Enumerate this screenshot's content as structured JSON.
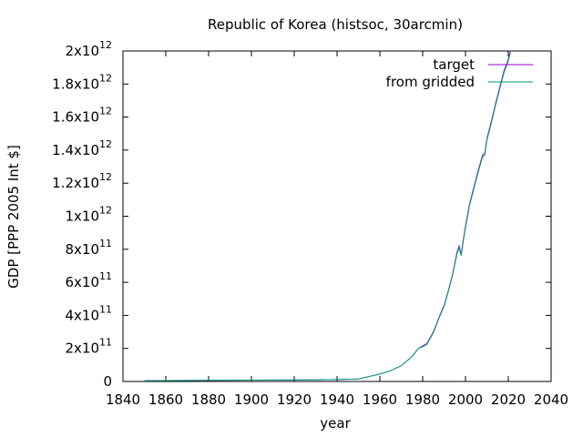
{
  "chart_data": {
    "type": "line",
    "title": "Republic of Korea (histsoc, 30arcmin)",
    "xlabel": "year",
    "ylabel": "GDP [PPP 2005 Int $]",
    "xlim": [
      1840,
      2040
    ],
    "ylim": [
      0,
      2000000000000
    ],
    "grid": false,
    "legend_position": "top-right",
    "x_ticks": [
      1840,
      1860,
      1880,
      1900,
      1920,
      1940,
      1960,
      1980,
      2000,
      2020,
      2040
    ],
    "x_tick_labels": [
      "1840",
      "1860",
      "1880",
      "1900",
      "1920",
      "1940",
      "1960",
      "1980",
      "2000",
      "2020",
      "2040"
    ],
    "y_ticks": [
      {
        "value": 0,
        "mant": "0",
        "exp": ""
      },
      {
        "value": 200000000000,
        "mant": "2x10",
        "exp": "11"
      },
      {
        "value": 400000000000,
        "mant": "4x10",
        "exp": "11"
      },
      {
        "value": 600000000000,
        "mant": "6x10",
        "exp": "11"
      },
      {
        "value": 800000000000,
        "mant": "8x10",
        "exp": "11"
      },
      {
        "value": 1000000000000,
        "mant": "1x10",
        "exp": "12"
      },
      {
        "value": 1200000000000,
        "mant": "1.2x10",
        "exp": "12"
      },
      {
        "value": 1400000000000,
        "mant": "1.4x10",
        "exp": "12"
      },
      {
        "value": 1600000000000,
        "mant": "1.6x10",
        "exp": "12"
      },
      {
        "value": 1800000000000,
        "mant": "1.8x10",
        "exp": "12"
      },
      {
        "value": 2000000000000,
        "mant": "2x10",
        "exp": "12"
      }
    ],
    "series": [
      {
        "name": "target",
        "color": "#9400d3",
        "x": [
          1850,
          1900,
          1930,
          1940,
          1950,
          1955,
          1960,
          1965,
          1970,
          1975,
          1978,
          1980,
          1982,
          1985,
          1988,
          1990,
          1992,
          1994,
          1996,
          1997,
          1998,
          1999,
          2000,
          2002,
          2004,
          2006,
          2008,
          2009,
          2010,
          2012,
          2014,
          2016,
          2018,
          2020,
          2021
        ],
        "y": [
          5000000000.0,
          8000000000.0,
          10000000000.0,
          12000000000.0,
          15000000000.0,
          30000000000.0,
          45000000000.0,
          65000000000.0,
          95000000000.0,
          150000000000.0,
          200000000000.0,
          215000000000.0,
          230000000000.0,
          300000000000.0,
          400000000000.0,
          460000000000.0,
          550000000000.0,
          650000000000.0,
          780000000000.0,
          820000000000.0,
          770000000000.0,
          860000000000.0,
          940000000000.0,
          1080000000000.0,
          1180000000000.0,
          1280000000000.0,
          1370000000000.0,
          1380000000000.0,
          1470000000000.0,
          1570000000000.0,
          1680000000000.0,
          1780000000000.0,
          1880000000000.0,
          1950000000000.0,
          2000000000000.0
        ]
      },
      {
        "name": "from gridded",
        "color": "#009e73",
        "x": [
          1850,
          1900,
          1930,
          1940,
          1950,
          1955,
          1960,
          1965,
          1970,
          1975,
          1978,
          1980,
          1982,
          1985,
          1988,
          1990,
          1992,
          1994,
          1996,
          1997,
          1998,
          1999,
          2000,
          2002,
          2004,
          2006,
          2008,
          2009,
          2010,
          2012,
          2014,
          2016,
          2018,
          2020,
          2021
        ],
        "y": [
          5000000000.0,
          8000000000.0,
          10000000000.0,
          12000000000.0,
          15000000000.0,
          30000000000.0,
          45000000000.0,
          65000000000.0,
          95000000000.0,
          150000000000.0,
          200000000000.0,
          210000000000.0,
          225000000000.0,
          295000000000.0,
          395000000000.0,
          455000000000.0,
          545000000000.0,
          645000000000.0,
          770000000000.0,
          810000000000.0,
          760000000000.0,
          850000000000.0,
          930000000000.0,
          1070000000000.0,
          1170000000000.0,
          1270000000000.0,
          1360000000000.0,
          1370000000000.0,
          1460000000000.0,
          1560000000000.0,
          1670000000000.0,
          1770000000000.0,
          1870000000000.0,
          1940000000000.0,
          1990000000000.0
        ]
      }
    ]
  }
}
